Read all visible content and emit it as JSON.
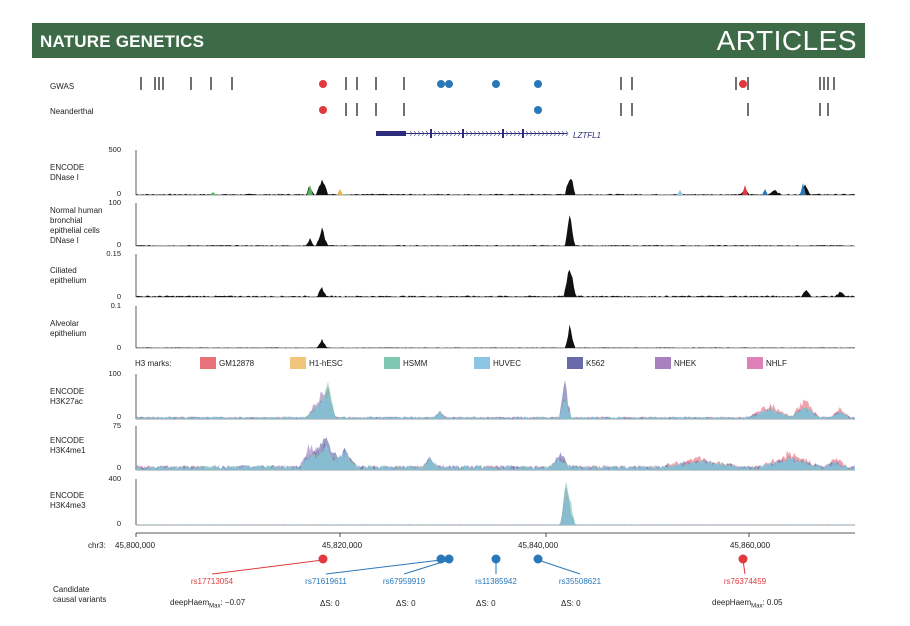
{
  "header": {
    "journal": "NATURE GENETICS",
    "section": "ARTICLES"
  },
  "rows": {
    "gwas": "GWAS",
    "neanderthal": "Neanderthal",
    "gene": "LZTFL1"
  },
  "tracks": [
    {
      "label": "ENCODE\nDNase I",
      "max": "500",
      "min": "0"
    },
    {
      "label": "Normal human\nbronchial\nepithelial cells\nDNase I",
      "max": "100",
      "min": "0"
    },
    {
      "label": "Ciliated\nepithelium",
      "max": "0.15",
      "min": "0"
    },
    {
      "label": "Alveolar\nepithelium",
      "max": "0.1",
      "min": "0"
    },
    {
      "label": "ENCODE\nH3K27ac",
      "max": "100",
      "min": "0"
    },
    {
      "label": "ENCODE\nH3K4me1",
      "max": "75",
      "min": "0"
    },
    {
      "label": "ENCODE\nH3K4me3",
      "max": "400",
      "min": "0"
    }
  ],
  "legend": {
    "title": "H3 marks:",
    "items": [
      {
        "name": "GM12878",
        "color": "#e8727a"
      },
      {
        "name": "H1-hESC",
        "color": "#f2c57c"
      },
      {
        "name": "HSMM",
        "color": "#7fc7b0"
      },
      {
        "name": "HUVEC",
        "color": "#8cc4e4"
      },
      {
        "name": "K562",
        "color": "#6a6aaa"
      },
      {
        "name": "NHEK",
        "color": "#a680bf"
      },
      {
        "name": "NHLF",
        "color": "#e080b8"
      }
    ]
  },
  "axis": {
    "chrom": "chr3:",
    "ticks": [
      "45,800,000",
      "45,820,000",
      "45,840,000",
      "45,860,000"
    ]
  },
  "variants": {
    "section_label": "Candidate\ncausal variants",
    "items": [
      {
        "id": "rs17713054",
        "color": "#e03a3e",
        "score": "deepHaem",
        "sub": "Max",
        "value": ": −0.07"
      },
      {
        "id": "rs71619611",
        "color": "#2a78b8",
        "score": "ΔS: 0"
      },
      {
        "id": "rs67959919",
        "color": "#2a78b8",
        "score": "ΔS: 0"
      },
      {
        "id": "rs11385942",
        "color": "#2a78b8",
        "score": "ΔS: 0"
      },
      {
        "id": "rs35508621",
        "color": "#2a78b8",
        "score": "ΔS: 0"
      },
      {
        "id": "rs76374459",
        "color": "#e03a3e",
        "score": "deepHaem",
        "sub": "Max",
        "value": ": 0.05"
      }
    ]
  },
  "colors": {
    "banner": "#3d6b47",
    "red": "#e03a3e",
    "blue": "#2a78b8",
    "gene": "#2c2c7a"
  }
}
